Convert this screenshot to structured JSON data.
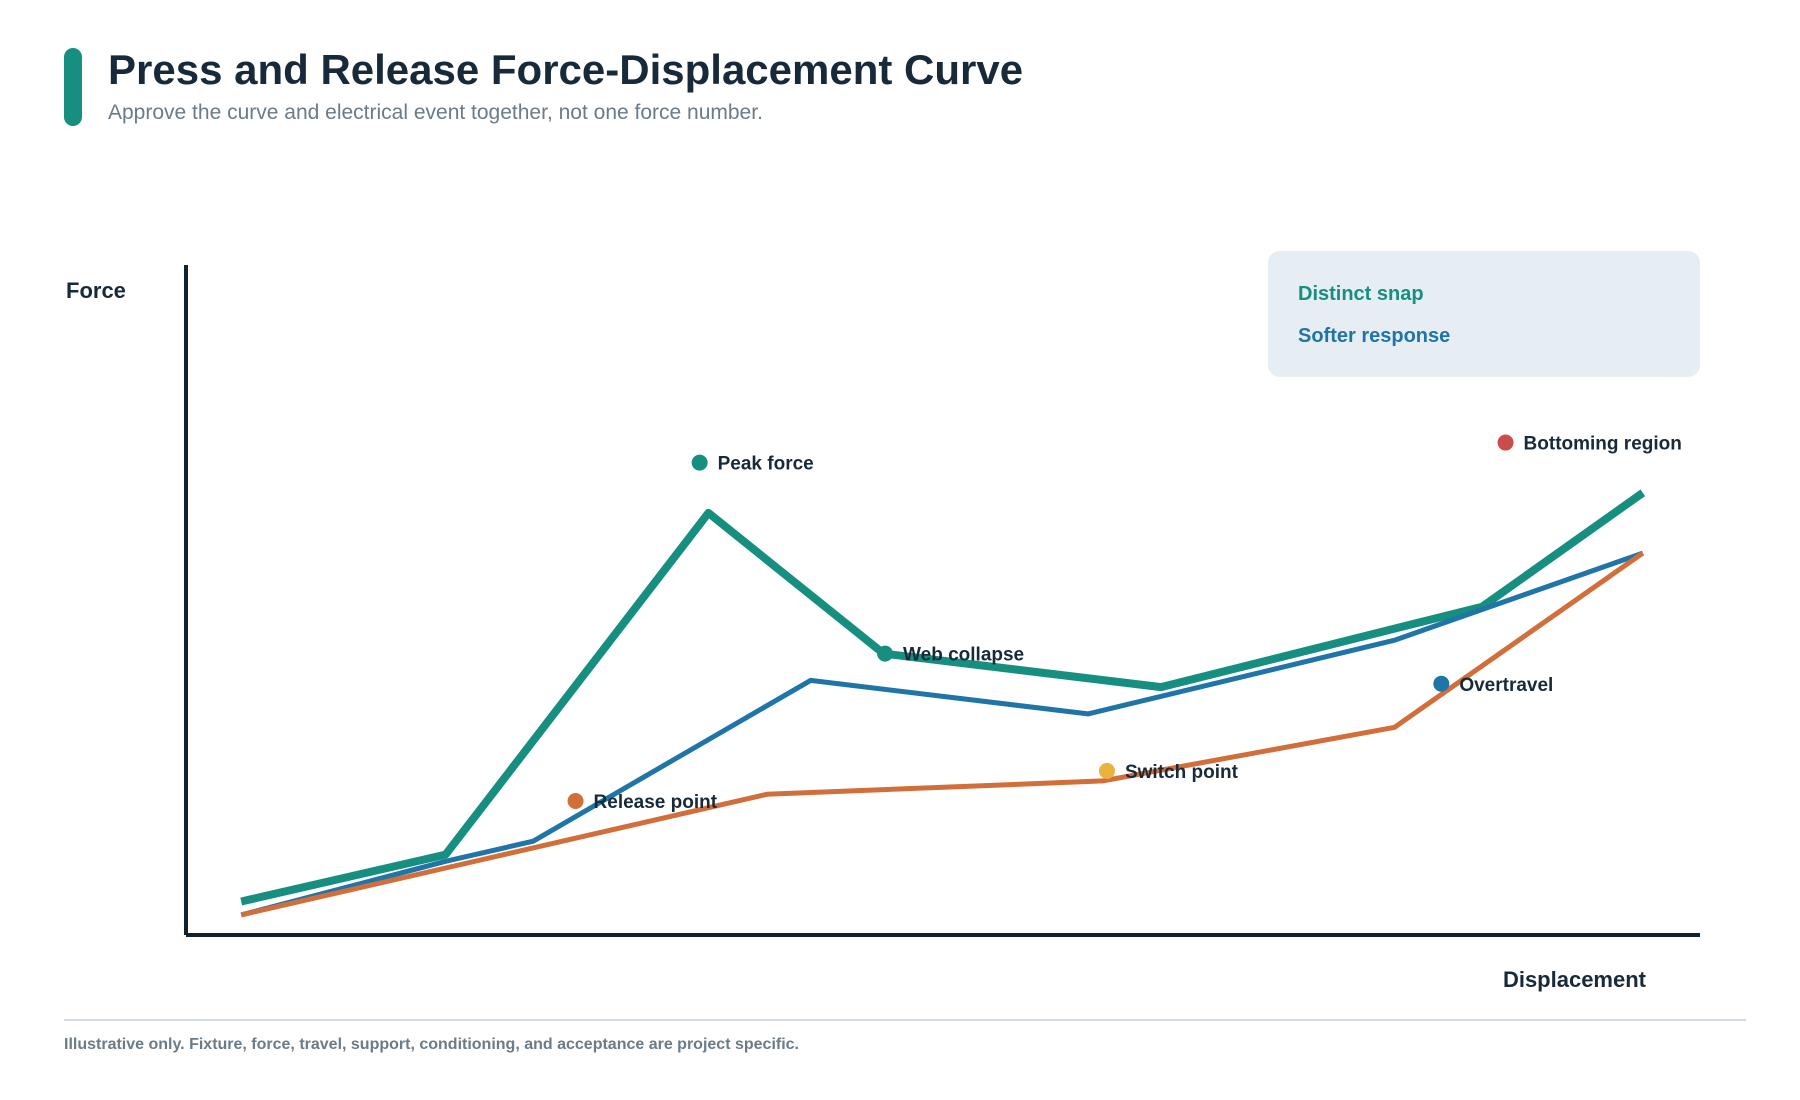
{
  "header": {
    "title": "Press and Release Force-Displacement Curve",
    "subtitle": "Approve the curve and electrical event together, not one force number."
  },
  "footer": {
    "note": "Illustrative only. Fixture, force, travel, support, conditioning, and acceptance are project specific."
  },
  "colors": {
    "accent": "#178f80",
    "distinct_snap": "#178f80",
    "softer_response": "#1f74a8",
    "release": "#d26e3a",
    "axis": "#0f2230",
    "text": "#182a3a",
    "muted": "#6b7b88",
    "legend_bg": "#e6eef3",
    "marker_peak": "#178f80",
    "marker_collapse": "#178f80",
    "marker_switch": "#e8b33f",
    "marker_release": "#d26e3a",
    "marker_overtravel": "#1f74a8",
    "marker_bottoming": "#cc4b4b"
  },
  "chart_data": {
    "type": "line",
    "xlabel": "Displacement",
    "ylabel": "Force",
    "xlim": [
      0,
      100
    ],
    "ylim": [
      0,
      100
    ],
    "grid": false,
    "legend_position": "top-right",
    "series": [
      {
        "name": "Distinct snap",
        "color": "#178f80",
        "points": [
          [
            2,
            5
          ],
          [
            16,
            12
          ],
          [
            34,
            63
          ],
          [
            46,
            42
          ],
          [
            65,
            37
          ],
          [
            87,
            49
          ],
          [
            98,
            66
          ]
        ]
      },
      {
        "name": "Softer response",
        "color": "#1f74a8",
        "points": [
          [
            2,
            3
          ],
          [
            16,
            11
          ],
          [
            22,
            14
          ],
          [
            41,
            38
          ],
          [
            60,
            33
          ],
          [
            81,
            44
          ],
          [
            98,
            57
          ]
        ]
      },
      {
        "name": "",
        "color": "#d26e3a",
        "points": [
          [
            2,
            3
          ],
          [
            16,
            10
          ],
          [
            38,
            21
          ],
          [
            61,
            23
          ],
          [
            81,
            31
          ],
          [
            98,
            57
          ]
        ]
      }
    ],
    "annotations": [
      {
        "label": "Peak force",
        "x": 33.4,
        "y": 70.5,
        "color": "#178f80"
      },
      {
        "label": "Web collapse",
        "x": 46.1,
        "y": 42.0,
        "color": "#178f80"
      },
      {
        "label": "Switch point",
        "x": 61.3,
        "y": 24.5,
        "color": "#e8b33f"
      },
      {
        "label": "Release point",
        "x": 24.9,
        "y": 20.0,
        "color": "#d26e3a"
      },
      {
        "label": "Overtravel",
        "x": 84.2,
        "y": 37.5,
        "color": "#1f74a8"
      },
      {
        "label": "Bottoming region",
        "x": 88.6,
        "y": 73.5,
        "color": "#cc4b4b"
      }
    ]
  }
}
